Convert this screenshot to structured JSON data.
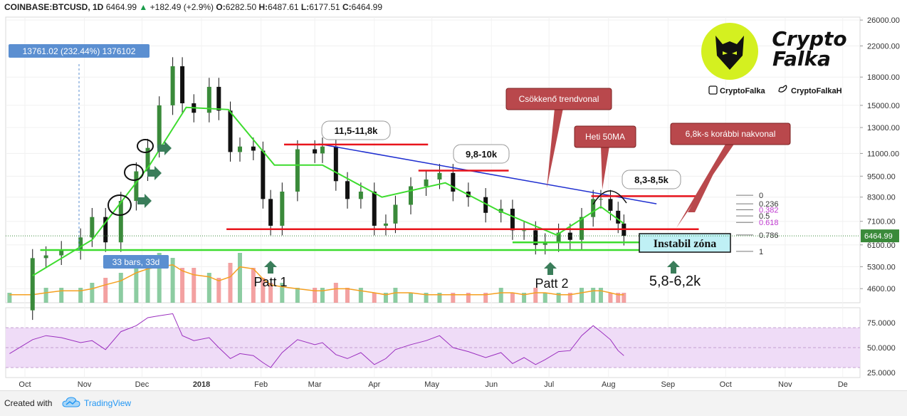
{
  "header": {
    "symbol": "COINBASE:BTCUSD, 1D",
    "last": "6464.99",
    "change": "+182.49 (+2.9%)",
    "o_label": "O:",
    "o": "6282.50",
    "h_label": "H:",
    "h": "6487.61",
    "l_label": "L:",
    "l": "6177.51",
    "c_label": "C:",
    "c": "6464.99"
  },
  "colors": {
    "up_candle": "#3a8a3a",
    "down_candle": "#111111",
    "ma_green": "#3ddc2e",
    "trendline_blue": "#1f2fd0",
    "resistance_red": "#e8141c",
    "support_green": "#3ddc2e",
    "rsi_line": "#9b2fbf",
    "rsi_band": "#efdcf7",
    "volume_up": "#6fbf8a",
    "volume_down": "#f08a8a",
    "volume_ma": "#f5a020",
    "arrow_green": "#3a7d5a",
    "callout_red": "#b9484c"
  },
  "chart_data": [
    {
      "type": "line",
      "subtype": "candlestick",
      "title": "COINBASE:BTCUSD, 1D",
      "y_scale": "log",
      "ylim": [
        4200,
        26500
      ],
      "y_ticks": [
        "26000.00",
        "22000.00",
        "18000.00",
        "15000.00",
        "13000.00",
        "11000.00",
        "9500.00",
        "8300.00",
        "7100.00",
        "6100.00",
        "5300.00",
        "4600.00"
      ],
      "x_ticks": [
        "Oct",
        "Nov",
        "Dec",
        "2018",
        "Feb",
        "Mar",
        "Apr",
        "May",
        "Jun",
        "Jul",
        "Aug",
        "Sep",
        "Oct",
        "Nov",
        "De"
      ],
      "last_price_label": "6464.99",
      "series": [
        {
          "name": "",
          "x": [
            "2017-09-23",
            "2017-10-05",
            "2017-10-12",
            "2017-10-20",
            "2017-10-30",
            "2017-11-05",
            "2017-11-12",
            "2017-11-20",
            "2017-11-28",
            "2017-12-04",
            "2017-12-10",
            "2017-12-17",
            "2017-12-22",
            "2017-12-28",
            "2018-01-05",
            "2018-01-10",
            "2018-01-16",
            "2018-01-21",
            "2018-01-28",
            "2018-02-02",
            "2018-02-06",
            "2018-02-12",
            "2018-02-20",
            "2018-03-01",
            "2018-03-05",
            "2018-03-12",
            "2018-03-18",
            "2018-03-25",
            "2018-04-01",
            "2018-04-07",
            "2018-04-12",
            "2018-04-20",
            "2018-04-28",
            "2018-05-05",
            "2018-05-12",
            "2018-05-20",
            "2018-05-29",
            "2018-06-06",
            "2018-06-12",
            "2018-06-18",
            "2018-06-24",
            "2018-06-29",
            "2018-07-06",
            "2018-07-12",
            "2018-07-18",
            "2018-07-24",
            "2018-07-28",
            "2018-08-02",
            "2018-08-06",
            "2018-08-09"
          ],
          "values": [
            4000,
            5600,
            5700,
            5900,
            6400,
            7300,
            6200,
            8100,
            9800,
            11400,
            15000,
            19300,
            15200,
            14300,
            16900,
            14500,
            11100,
            11500,
            11200,
            8200,
            6900,
            8600,
            11300,
            11000,
            11500,
            9200,
            8200,
            8600,
            6900,
            7000,
            7900,
            8900,
            9300,
            9700,
            8600,
            8300,
            7500,
            7700,
            6700,
            6700,
            6100,
            6200,
            6600,
            6300,
            7300,
            8200,
            8200,
            7600,
            7000,
            6465
          ]
        },
        {
          "name": "",
          "x": [
            "2017-10-05",
            "2017-11-05",
            "2017-12-05",
            "2017-12-24",
            "2018-01-15",
            "2018-02-08",
            "2018-03-05",
            "2018-04-05",
            "2018-05-08",
            "2018-06-05",
            "2018-07-05",
            "2018-07-28",
            "2018-08-09"
          ],
          "values": [
            5000,
            6300,
            10200,
            14800,
            14600,
            10200,
            10200,
            8300,
            9100,
            7600,
            6500,
            7800,
            7000
          ]
        }
      ]
    },
    {
      "type": "bar",
      "subtype": "volume",
      "series": [
        {
          "name": "",
          "values": [
            2,
            2,
            3,
            3,
            3,
            4,
            5,
            6,
            9,
            8,
            10,
            9,
            7,
            7,
            6,
            5,
            8,
            10,
            7,
            5,
            4,
            4,
            3,
            3,
            3,
            4,
            3,
            3,
            2,
            2,
            3,
            2,
            2,
            2,
            2,
            2,
            2,
            3,
            2,
            2,
            3,
            2,
            2,
            2,
            3,
            3,
            3,
            2,
            2,
            2
          ]
        }
      ]
    },
    {
      "type": "line",
      "subtype": "rsi",
      "ylim": [
        20,
        90
      ],
      "y_ticks": [
        "75.0000",
        "50.0000",
        "25.0000"
      ],
      "series": [
        {
          "name": "",
          "values": [
            44,
            58,
            62,
            60,
            55,
            57,
            48,
            66,
            72,
            80,
            82,
            84,
            62,
            57,
            60,
            50,
            39,
            44,
            42,
            35,
            30,
            45,
            58,
            53,
            55,
            43,
            39,
            45,
            33,
            39,
            48,
            53,
            57,
            62,
            50,
            46,
            40,
            45,
            34,
            40,
            33,
            38,
            46,
            47,
            62,
            72,
            66,
            58,
            47,
            42
          ]
        }
      ]
    }
  ],
  "annotations": {
    "measure_label": "13761.02 (232.44%) 1376102",
    "bars_label": "33 bars, 33d",
    "bubble_1": "11,5-11,8k",
    "bubble_2": "9,8-10k",
    "bubble_3": "8,3-8,5k",
    "callout_trend": "Csökkenő trendvonal",
    "callout_ma": "Heti 50MA",
    "callout_prev": "6,8k-s korábbi nakvonal",
    "patt1": "Patt 1",
    "patt2": "Patt 2",
    "zone_label": "Instabil zóna",
    "zone_range": "5,8-6,2k",
    "fib": [
      "0",
      "0.236",
      "0.382",
      "0.5",
      "0.618",
      "0.786",
      "1"
    ]
  },
  "logo": {
    "line1": "Crypto",
    "line2": "Falka",
    "social_1": "CryptoFalka",
    "social_2": "CryptoFalkaH"
  },
  "footer": {
    "created_with": "Created with",
    "brand": "TradingView"
  }
}
